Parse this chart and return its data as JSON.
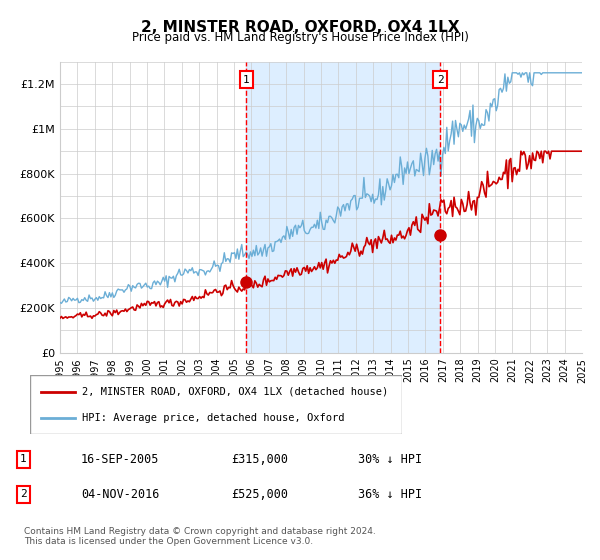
{
  "title": "2, MINSTER ROAD, OXFORD, OX4 1LX",
  "subtitle": "Price paid vs. HM Land Registry's House Price Index (HPI)",
  "start_year": 1995,
  "end_year": 2025,
  "ylim": [
    0,
    1300000
  ],
  "yticks": [
    0,
    200000,
    400000,
    600000,
    800000,
    1000000,
    1200000
  ],
  "ytick_labels": [
    "£0",
    "£200K",
    "£400K",
    "£600K",
    "£800K",
    "£1M",
    "£1.2M"
  ],
  "sale1_date": 2005.71,
  "sale1_price": 315000,
  "sale1_label": "1",
  "sale2_date": 2016.84,
  "sale2_price": 525000,
  "sale2_label": "2",
  "hpi_color": "#6baed6",
  "price_color": "#cc0000",
  "shade_color": "#ddeeff",
  "grid_color": "#cccccc",
  "background_color": "#ffffff",
  "legend1": "2, MINSTER ROAD, OXFORD, OX4 1LX (detached house)",
  "legend2": "HPI: Average price, detached house, Oxford",
  "table_row1": [
    "1",
    "16-SEP-2005",
    "£315,000",
    "30% ↓ HPI"
  ],
  "table_row2": [
    "2",
    "04-NOV-2016",
    "£525,000",
    "36% ↓ HPI"
  ],
  "footnote": "Contains HM Land Registry data © Crown copyright and database right 2024.\nThis data is licensed under the Open Government Licence v3.0."
}
